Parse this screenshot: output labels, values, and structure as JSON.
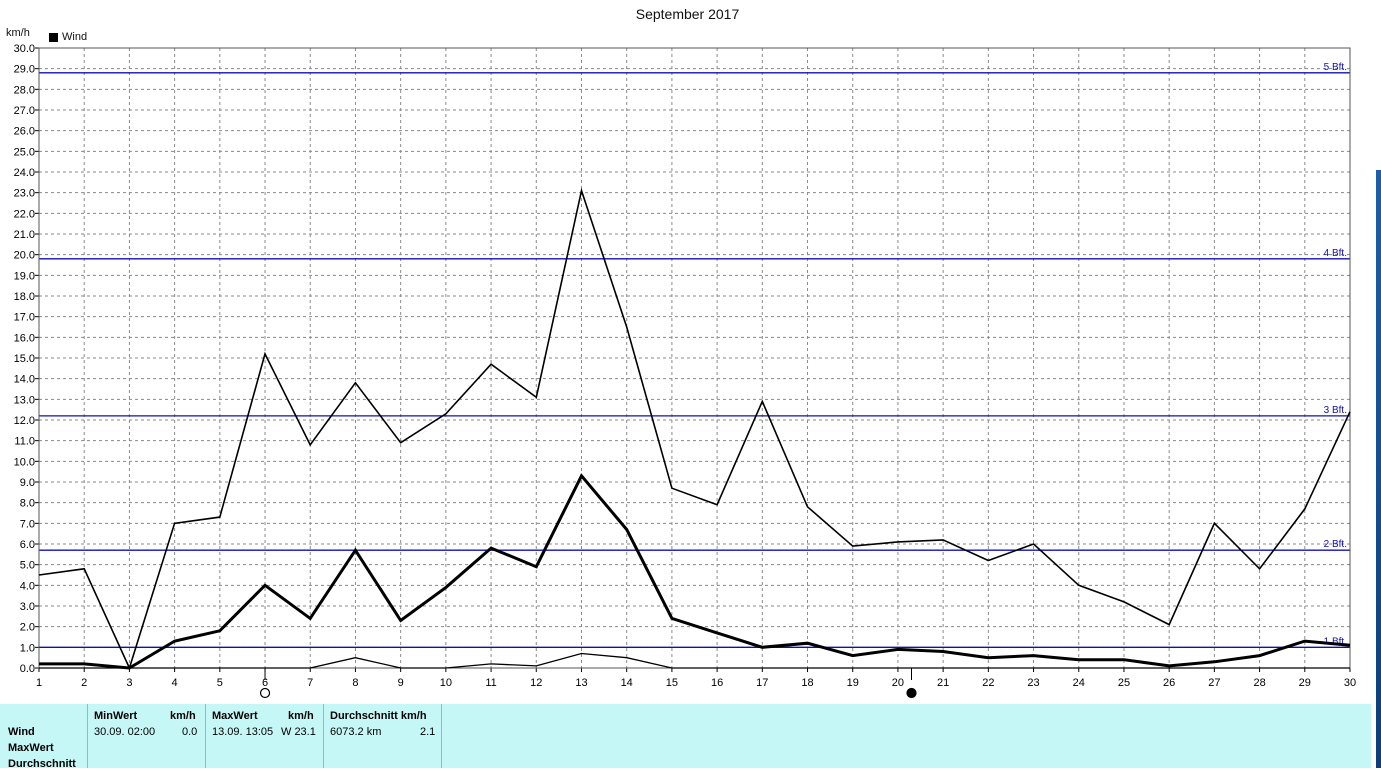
{
  "header": {
    "title": "September 2017",
    "unit": "km/h"
  },
  "legend": {
    "label": "Wind"
  },
  "chart_data": {
    "type": "line",
    "title": "September 2017",
    "ylabel": "km/h",
    "xlabel": "",
    "ylim": [
      0,
      30
    ],
    "xlim": [
      1,
      30
    ],
    "grid": true,
    "legend_position": "top-left",
    "x_ticks": [
      "1",
      "2",
      "3",
      "4",
      "5",
      "6",
      "7",
      "8",
      "9",
      "10",
      "11",
      "12",
      "13",
      "14",
      "15",
      "16",
      "17",
      "18",
      "19",
      "20",
      "21",
      "22",
      "23",
      "24",
      "25",
      "26",
      "27",
      "28",
      "29",
      "30"
    ],
    "y_ticks": [
      "0.0",
      "1.0",
      "2.0",
      "3.0",
      "4.0",
      "5.0",
      "6.0",
      "7.0",
      "8.0",
      "9.0",
      "10.0",
      "11.0",
      "12.0",
      "13.0",
      "14.0",
      "15.0",
      "16.0",
      "17.0",
      "18.0",
      "19.0",
      "20.0",
      "21.0",
      "22.0",
      "23.0",
      "24.0",
      "25.0",
      "26.0",
      "27.0",
      "28.0",
      "29.0",
      "30.0"
    ],
    "x": [
      1,
      2,
      3,
      4,
      5,
      6,
      7,
      8,
      9,
      10,
      11,
      12,
      13,
      14,
      15,
      16,
      17,
      18,
      19,
      20,
      21,
      22,
      23,
      24,
      25,
      26,
      27,
      28,
      29,
      30
    ],
    "series": [
      {
        "name": "Wind",
        "style": "max",
        "values": [
          4.5,
          4.8,
          0.0,
          7.0,
          7.3,
          15.2,
          10.8,
          13.8,
          10.9,
          12.3,
          14.7,
          13.1,
          23.1,
          16.5,
          8.7,
          7.9,
          12.9,
          7.8,
          5.9,
          6.1,
          6.2,
          5.2,
          6.0,
          4.0,
          3.2,
          2.1,
          7.0,
          4.8,
          7.7,
          12.4
        ]
      },
      {
        "name": "Wind",
        "style": "avg",
        "values": [
          0.2,
          0.2,
          0.0,
          1.3,
          1.8,
          4.0,
          2.4,
          5.7,
          2.3,
          3.9,
          5.8,
          4.9,
          9.3,
          6.7,
          2.4,
          1.7,
          1.0,
          1.2,
          0.6,
          0.9,
          0.8,
          0.5,
          0.6,
          0.4,
          0.4,
          0.1,
          0.3,
          0.6,
          1.3,
          1.1
        ]
      },
      {
        "name": "Wind",
        "style": "min",
        "values": [
          0.0,
          0.0,
          0.0,
          0.0,
          0.0,
          0.0,
          0.0,
          0.5,
          0.0,
          0.0,
          0.2,
          0.1,
          0.7,
          0.5,
          0.0,
          0.0,
          0.0,
          0.0,
          0.0,
          0.0,
          0.0,
          0.0,
          0.0,
          0.0,
          0.0,
          0.0,
          0.0,
          0.0,
          0.0,
          0.0
        ]
      }
    ],
    "reference_lines": [
      {
        "label": "1 Bft.",
        "value": 1.0
      },
      {
        "label": "2 Bft.",
        "value": 5.7
      },
      {
        "label": "3 Bft.",
        "value": 12.2
      },
      {
        "label": "4 Bft.",
        "value": 19.8
      },
      {
        "label": "5 Bft.",
        "value": 28.8
      }
    ],
    "moon_phases": [
      {
        "x": 6.0,
        "phase": "full"
      },
      {
        "x": 20.3,
        "phase": "new"
      }
    ],
    "colors": {
      "line": "#000000",
      "reference": "#1010b0",
      "grid": "#8a8a8a",
      "stats_bg": "#c6f7f7"
    }
  },
  "stats": {
    "row_labels": [
      "Wind",
      "MaxWert",
      "Durchschnitt"
    ],
    "min_header": "MinWert",
    "min_unit": "km/h",
    "min_date": "30.09.  02:00",
    "min_value": "0.0",
    "max_header": "MaxWert",
    "max_unit": "km/h",
    "max_date": "13.09.  13:05",
    "max_value": "W 23.1",
    "avg_header": "Durchschnitt km/h",
    "avg_distance": "6073.2 km",
    "avg_value": "2.1"
  }
}
